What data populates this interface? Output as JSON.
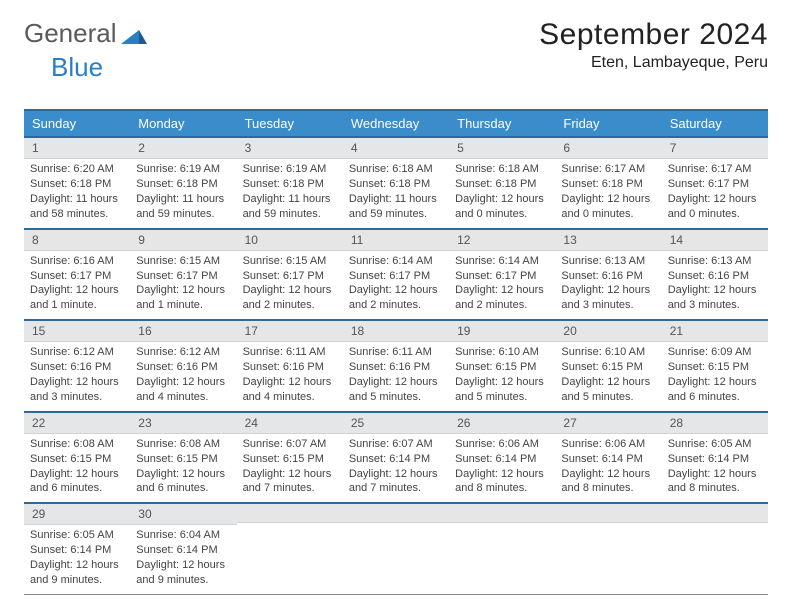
{
  "logo": {
    "part1": "General",
    "part2": "Blue"
  },
  "title": "September 2024",
  "location": "Eten, Lambayeque, Peru",
  "colors": {
    "headerBg": "#3b8ccb",
    "borderTop": "#2a6aa0",
    "stripBg": "#e4e6e8"
  },
  "dayNames": [
    "Sunday",
    "Monday",
    "Tuesday",
    "Wednesday",
    "Thursday",
    "Friday",
    "Saturday"
  ],
  "days": [
    {
      "n": 1,
      "sunrise": "6:20 AM",
      "sunset": "6:18 PM",
      "daylight": "11 hours and 58 minutes."
    },
    {
      "n": 2,
      "sunrise": "6:19 AM",
      "sunset": "6:18 PM",
      "daylight": "11 hours and 59 minutes."
    },
    {
      "n": 3,
      "sunrise": "6:19 AM",
      "sunset": "6:18 PM",
      "daylight": "11 hours and 59 minutes."
    },
    {
      "n": 4,
      "sunrise": "6:18 AM",
      "sunset": "6:18 PM",
      "daylight": "11 hours and 59 minutes."
    },
    {
      "n": 5,
      "sunrise": "6:18 AM",
      "sunset": "6:18 PM",
      "daylight": "12 hours and 0 minutes."
    },
    {
      "n": 6,
      "sunrise": "6:17 AM",
      "sunset": "6:18 PM",
      "daylight": "12 hours and 0 minutes."
    },
    {
      "n": 7,
      "sunrise": "6:17 AM",
      "sunset": "6:17 PM",
      "daylight": "12 hours and 0 minutes."
    },
    {
      "n": 8,
      "sunrise": "6:16 AM",
      "sunset": "6:17 PM",
      "daylight": "12 hours and 1 minute."
    },
    {
      "n": 9,
      "sunrise": "6:15 AM",
      "sunset": "6:17 PM",
      "daylight": "12 hours and 1 minute."
    },
    {
      "n": 10,
      "sunrise": "6:15 AM",
      "sunset": "6:17 PM",
      "daylight": "12 hours and 2 minutes."
    },
    {
      "n": 11,
      "sunrise": "6:14 AM",
      "sunset": "6:17 PM",
      "daylight": "12 hours and 2 minutes."
    },
    {
      "n": 12,
      "sunrise": "6:14 AM",
      "sunset": "6:17 PM",
      "daylight": "12 hours and 2 minutes."
    },
    {
      "n": 13,
      "sunrise": "6:13 AM",
      "sunset": "6:16 PM",
      "daylight": "12 hours and 3 minutes."
    },
    {
      "n": 14,
      "sunrise": "6:13 AM",
      "sunset": "6:16 PM",
      "daylight": "12 hours and 3 minutes."
    },
    {
      "n": 15,
      "sunrise": "6:12 AM",
      "sunset": "6:16 PM",
      "daylight": "12 hours and 3 minutes."
    },
    {
      "n": 16,
      "sunrise": "6:12 AM",
      "sunset": "6:16 PM",
      "daylight": "12 hours and 4 minutes."
    },
    {
      "n": 17,
      "sunrise": "6:11 AM",
      "sunset": "6:16 PM",
      "daylight": "12 hours and 4 minutes."
    },
    {
      "n": 18,
      "sunrise": "6:11 AM",
      "sunset": "6:16 PM",
      "daylight": "12 hours and 5 minutes."
    },
    {
      "n": 19,
      "sunrise": "6:10 AM",
      "sunset": "6:15 PM",
      "daylight": "12 hours and 5 minutes."
    },
    {
      "n": 20,
      "sunrise": "6:10 AM",
      "sunset": "6:15 PM",
      "daylight": "12 hours and 5 minutes."
    },
    {
      "n": 21,
      "sunrise": "6:09 AM",
      "sunset": "6:15 PM",
      "daylight": "12 hours and 6 minutes."
    },
    {
      "n": 22,
      "sunrise": "6:08 AM",
      "sunset": "6:15 PM",
      "daylight": "12 hours and 6 minutes."
    },
    {
      "n": 23,
      "sunrise": "6:08 AM",
      "sunset": "6:15 PM",
      "daylight": "12 hours and 6 minutes."
    },
    {
      "n": 24,
      "sunrise": "6:07 AM",
      "sunset": "6:15 PM",
      "daylight": "12 hours and 7 minutes."
    },
    {
      "n": 25,
      "sunrise": "6:07 AM",
      "sunset": "6:14 PM",
      "daylight": "12 hours and 7 minutes."
    },
    {
      "n": 26,
      "sunrise": "6:06 AM",
      "sunset": "6:14 PM",
      "daylight": "12 hours and 8 minutes."
    },
    {
      "n": 27,
      "sunrise": "6:06 AM",
      "sunset": "6:14 PM",
      "daylight": "12 hours and 8 minutes."
    },
    {
      "n": 28,
      "sunrise": "6:05 AM",
      "sunset": "6:14 PM",
      "daylight": "12 hours and 8 minutes."
    },
    {
      "n": 29,
      "sunrise": "6:05 AM",
      "sunset": "6:14 PM",
      "daylight": "12 hours and 9 minutes."
    },
    {
      "n": 30,
      "sunrise": "6:04 AM",
      "sunset": "6:14 PM",
      "daylight": "12 hours and 9 minutes."
    }
  ],
  "labels": {
    "sunrise": "Sunrise:",
    "sunset": "Sunset:",
    "daylight": "Daylight:"
  },
  "layout": {
    "startWeekday": 0,
    "cellCount": 35
  }
}
